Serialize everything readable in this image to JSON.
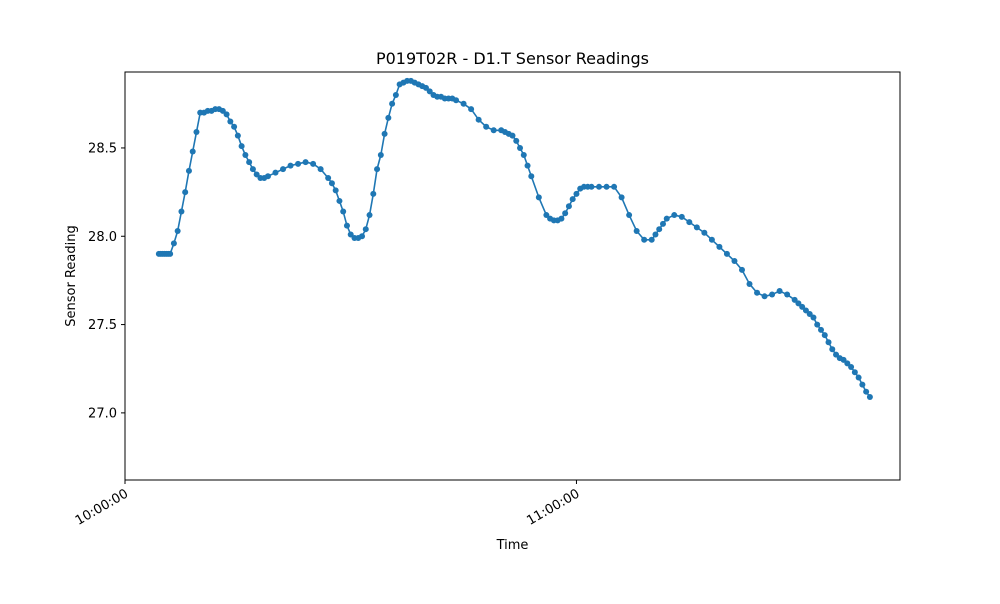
{
  "chart_data": {
    "type": "line",
    "title": "P019T02R - D1.T Sensor Readings",
    "xlabel": "Time",
    "ylabel": "Sensor Reading",
    "xlim": [
      "10:00:00",
      "11:43:00"
    ],
    "ylim": [
      26.62,
      28.93
    ],
    "x_ticks": [
      "10:00:00",
      "11:00:00"
    ],
    "y_ticks": [
      "27.0",
      "27.5",
      "28.0",
      "28.5"
    ],
    "grid": false,
    "legend": "none",
    "colors": {
      "series": "#1f77b4",
      "axes": "#000000",
      "background": "#ffffff"
    },
    "series": [
      {
        "marker": "circle",
        "x": [
          "10:04:30",
          "10:04:45",
          "10:05:00",
          "10:05:15",
          "10:05:30",
          "10:05:45",
          "10:06:00",
          "10:06:30",
          "10:07:00",
          "10:07:30",
          "10:08:00",
          "10:08:30",
          "10:09:00",
          "10:09:30",
          "10:10:00",
          "10:10:30",
          "10:11:00",
          "10:11:30",
          "10:12:00",
          "10:12:30",
          "10:13:00",
          "10:13:30",
          "10:14:00",
          "10:14:30",
          "10:15:00",
          "10:15:30",
          "10:16:00",
          "10:16:30",
          "10:17:00",
          "10:17:30",
          "10:18:00",
          "10:18:30",
          "10:19:00",
          "10:20:00",
          "10:21:00",
          "10:22:00",
          "10:23:00",
          "10:24:00",
          "10:25:00",
          "10:26:00",
          "10:27:00",
          "10:27:30",
          "10:28:00",
          "10:28:30",
          "10:29:00",
          "10:29:30",
          "10:30:00",
          "10:30:30",
          "10:31:00",
          "10:31:30",
          "10:32:00",
          "10:32:30",
          "10:33:00",
          "10:33:30",
          "10:34:00",
          "10:34:30",
          "10:35:00",
          "10:35:30",
          "10:36:00",
          "10:36:30",
          "10:37:00",
          "10:37:30",
          "10:38:00",
          "10:38:30",
          "10:39:00",
          "10:39:30",
          "10:40:00",
          "10:40:30",
          "10:41:00",
          "10:41:30",
          "10:42:00",
          "10:42:30",
          "10:43:00",
          "10:43:30",
          "10:44:00",
          "10:45:00",
          "10:46:00",
          "10:47:00",
          "10:48:00",
          "10:49:00",
          "10:50:00",
          "10:50:30",
          "10:51:00",
          "10:51:30",
          "10:52:00",
          "10:52:30",
          "10:53:00",
          "10:53:30",
          "10:54:00",
          "10:55:00",
          "10:56:00",
          "10:56:30",
          "10:57:00",
          "10:57:30",
          "10:58:00",
          "10:58:30",
          "10:59:00",
          "10:59:30",
          "11:00:00",
          "11:00:30",
          "11:01:00",
          "11:01:30",
          "11:02:00",
          "11:03:00",
          "11:04:00",
          "11:05:00",
          "11:06:00",
          "11:07:00",
          "11:08:00",
          "11:09:00",
          "11:10:00",
          "11:10:30",
          "11:11:00",
          "11:11:30",
          "11:12:00",
          "11:13:00",
          "11:14:00",
          "11:15:00",
          "11:16:00",
          "11:17:00",
          "11:18:00",
          "11:19:00",
          "11:20:00",
          "11:21:00",
          "11:22:00",
          "11:23:00",
          "11:24:00",
          "11:25:00",
          "11:26:00",
          "11:27:00",
          "11:28:00",
          "11:29:00",
          "11:29:30",
          "11:30:00",
          "11:30:30",
          "11:31:00",
          "11:31:30",
          "11:32:00",
          "11:32:30",
          "11:33:00",
          "11:33:30",
          "11:34:00",
          "11:34:30",
          "11:35:00",
          "11:35:30",
          "11:36:00",
          "11:36:30",
          "11:37:00",
          "11:37:30",
          "11:38:00",
          "11:38:30",
          "11:39:00"
        ],
        "y": [
          27.9,
          27.9,
          27.9,
          27.9,
          27.9,
          27.9,
          27.9,
          27.96,
          28.03,
          28.14,
          28.25,
          28.37,
          28.48,
          28.59,
          28.7,
          28.7,
          28.71,
          28.71,
          28.72,
          28.72,
          28.71,
          28.69,
          28.65,
          28.62,
          28.57,
          28.51,
          28.46,
          28.42,
          28.38,
          28.35,
          28.33,
          28.33,
          28.34,
          28.36,
          28.38,
          28.4,
          28.41,
          28.42,
          28.41,
          28.38,
          28.33,
          28.3,
          28.26,
          28.2,
          28.14,
          28.06,
          28.01,
          27.99,
          27.99,
          28.0,
          28.04,
          28.12,
          28.24,
          28.38,
          28.46,
          28.58,
          28.67,
          28.75,
          28.8,
          28.86,
          28.87,
          28.88,
          28.88,
          28.87,
          28.86,
          28.85,
          28.84,
          28.82,
          28.8,
          28.79,
          28.79,
          28.78,
          28.78,
          28.78,
          28.77,
          28.75,
          28.72,
          28.66,
          28.62,
          28.6,
          28.6,
          28.59,
          28.58,
          28.57,
          28.54,
          28.5,
          28.46,
          28.4,
          28.34,
          28.22,
          28.12,
          28.1,
          28.09,
          28.09,
          28.1,
          28.13,
          28.17,
          28.21,
          28.24,
          28.27,
          28.28,
          28.28,
          28.28,
          28.28,
          28.28,
          28.28,
          28.22,
          28.12,
          28.03,
          27.98,
          27.98,
          28.01,
          28.04,
          28.07,
          28.1,
          28.12,
          28.11,
          28.08,
          28.05,
          28.02,
          27.98,
          27.94,
          27.9,
          27.86,
          27.81,
          27.73,
          27.68,
          27.66,
          27.67,
          27.69,
          27.67,
          27.64,
          27.62,
          27.6,
          27.58,
          27.56,
          27.54,
          27.5,
          27.47,
          27.44,
          27.4,
          27.36,
          27.33,
          27.31,
          27.3,
          27.28,
          27.26,
          27.23,
          27.2,
          27.16,
          27.12,
          27.09
        ]
      }
    ]
  }
}
